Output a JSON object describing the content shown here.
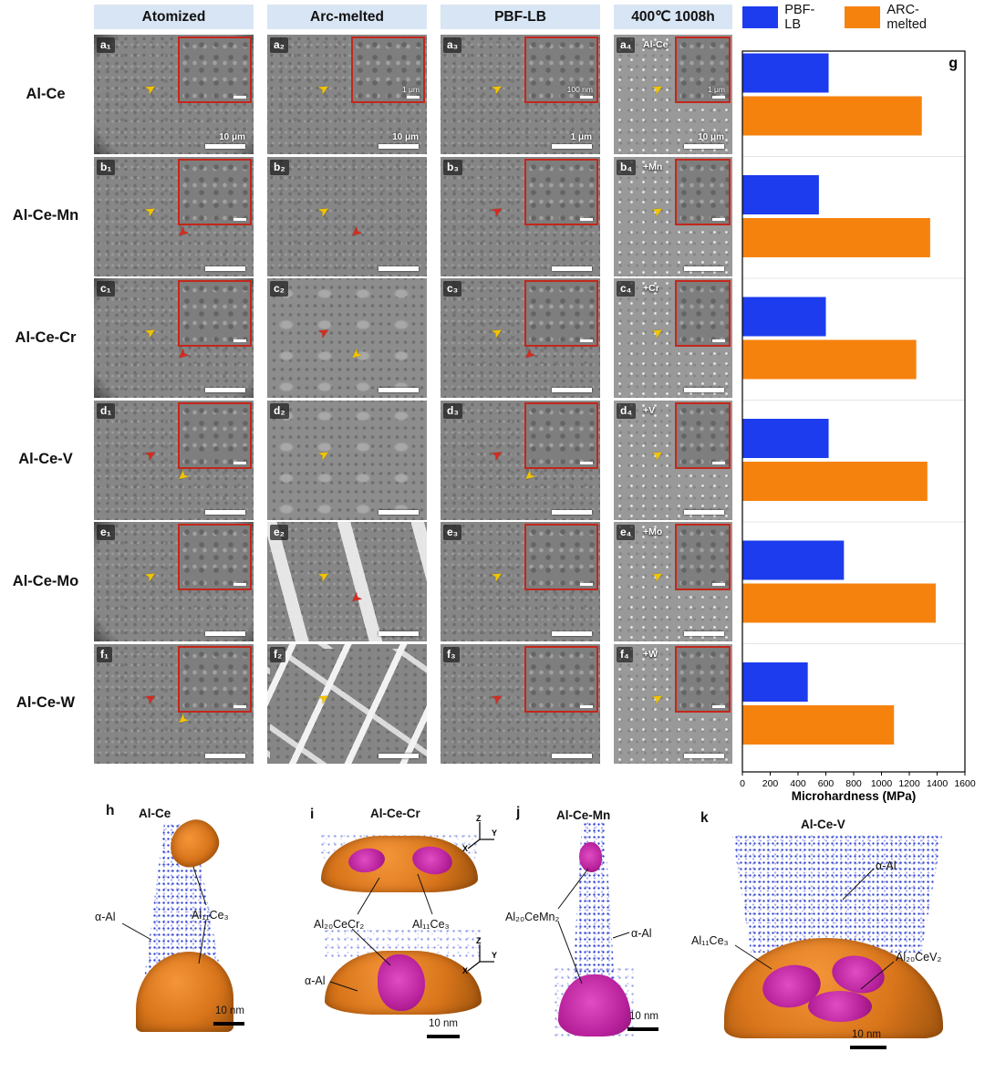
{
  "figure": {
    "column_headers": [
      "Atomized",
      "Arc-melted",
      "PBF-LB",
      "400℃ 1008h"
    ],
    "legend": [
      {
        "label": "PBF-LB",
        "color": "#1d3ced"
      },
      {
        "label": "ARC-melted",
        "color": "#f6820e"
      }
    ],
    "rows": [
      {
        "label": "Al-Ce",
        "panels": [
          {
            "id": "a₁",
            "edge": true,
            "inset": true,
            "scale": "10 μm",
            "arrows": [
              "yellow"
            ]
          },
          {
            "id": "a₂",
            "inset": true,
            "inset_scale": "1 μm",
            "scale": "10 μm",
            "arrows": [
              "yellow"
            ]
          },
          {
            "id": "a₃",
            "inset": true,
            "inset_scale": "100 nm",
            "scale": "1 μm",
            "arrows": [
              "yellow"
            ]
          },
          {
            "id": "a₄",
            "tag": "Al-Ce",
            "inset": true,
            "inset_scale": "1 μm",
            "scale": "10 μm",
            "arrows": [
              "yellow"
            ]
          }
        ]
      },
      {
        "label": "Al-Ce-Mn",
        "panels": [
          {
            "id": "b₁",
            "inset": true,
            "arrows": [
              "yellow",
              "red"
            ]
          },
          {
            "id": "b₂",
            "arrows": [
              "yellow",
              "red"
            ]
          },
          {
            "id": "b₃",
            "inset": true,
            "arrows": [
              "red"
            ]
          },
          {
            "id": "b₄",
            "tag": "+Mn",
            "inset": true,
            "arrows": [
              "yellow"
            ]
          }
        ]
      },
      {
        "label": "Al-Ce-Cr",
        "panels": [
          {
            "id": "c₁",
            "edge": true,
            "inset": true,
            "arrows": [
              "yellow",
              "red"
            ]
          },
          {
            "id": "c₂",
            "variant": "coarse",
            "arrows": [
              "red",
              "yellow"
            ]
          },
          {
            "id": "c₃",
            "inset": true,
            "arrows": [
              "yellow",
              "red"
            ]
          },
          {
            "id": "c₄",
            "tag": "+Cr",
            "inset": true,
            "arrows": [
              "yellow"
            ]
          }
        ]
      },
      {
        "label": "Al-Ce-V",
        "panels": [
          {
            "id": "d₁",
            "inset": true,
            "arrows": [
              "red",
              "yellow"
            ]
          },
          {
            "id": "d₂",
            "variant": "coarse",
            "arrows": [
              "yellow"
            ]
          },
          {
            "id": "d₃",
            "inset": true,
            "arrows": [
              "red",
              "yellow"
            ]
          },
          {
            "id": "d₄",
            "tag": "+V",
            "inset": true,
            "arrows": [
              "yellow"
            ]
          }
        ]
      },
      {
        "label": "Al-Ce-Mo",
        "panels": [
          {
            "id": "e₁",
            "edge": true,
            "inset": true,
            "arrows": [
              "yellow"
            ]
          },
          {
            "id": "e₂",
            "variant": "plates",
            "arrows": [
              "yellow",
              "red"
            ]
          },
          {
            "id": "e₃",
            "inset": true,
            "arrows": [
              "yellow"
            ]
          },
          {
            "id": "e₄",
            "tag": "+Mo",
            "inset": true,
            "arrows": [
              "yellow"
            ]
          }
        ]
      },
      {
        "label": "Al-Ce-W",
        "panels": [
          {
            "id": "f₁",
            "inset": true,
            "arrows": [
              "red",
              "yellow"
            ]
          },
          {
            "id": "f₂",
            "variant": "laths",
            "arrows": [
              "yellow"
            ]
          },
          {
            "id": "f₃",
            "inset": true,
            "arrows": [
              "red"
            ]
          },
          {
            "id": "f₄",
            "tag": "+W",
            "inset": true,
            "arrows": [
              "yellow"
            ]
          }
        ]
      }
    ]
  },
  "chart_data": {
    "type": "bar",
    "orientation": "horizontal",
    "panel_label": "g",
    "categories": [
      "Al-Ce",
      "Al-Ce-Mn",
      "Al-Ce-Cr",
      "Al-Ce-V",
      "Al-Ce-Mo",
      "Al-Ce-W"
    ],
    "series": [
      {
        "name": "PBF-LB",
        "color": "#1d3ced",
        "values": [
          620,
          550,
          600,
          620,
          730,
          470
        ]
      },
      {
        "name": "ARC-melted",
        "color": "#f6820e",
        "values": [
          1290,
          1350,
          1250,
          1330,
          1390,
          1090
        ]
      }
    ],
    "xlabel": "Microhardness (MPa)",
    "xlim": [
      0,
      1600
    ],
    "xticks": [
      0,
      200,
      400,
      600,
      800,
      1000,
      1200,
      1400,
      1600
    ],
    "legend_position": "top-right",
    "grid": "band-separators"
  },
  "apt": {
    "panels": [
      {
        "id": "h",
        "title": "Al-Ce",
        "labels": {
          "alpha": "α-Al",
          "phase": "Al₁₁Ce₃"
        },
        "scale": "10 nm"
      },
      {
        "id": "i",
        "title": "Al-Ce-Cr",
        "labels": {
          "phase1": "Al₂₀CeCr₂",
          "phase2": "Al₁₁Ce₃",
          "alpha": "α-Al"
        },
        "scale": "10 nm",
        "axes": [
          "Z",
          "X",
          "Y"
        ]
      },
      {
        "id": "j",
        "title": "Al-Ce-Mn",
        "labels": {
          "phase": "Al₂₀CeMn₂",
          "alpha": "α-Al"
        },
        "scale": "10 nm"
      },
      {
        "id": "k",
        "title": "Al-Ce-V",
        "labels": {
          "alpha": "α-Al",
          "phase1": "Al₁₁Ce₃",
          "phase2": "Al₂₀CeV₂"
        },
        "scale": "10 nm"
      }
    ]
  }
}
